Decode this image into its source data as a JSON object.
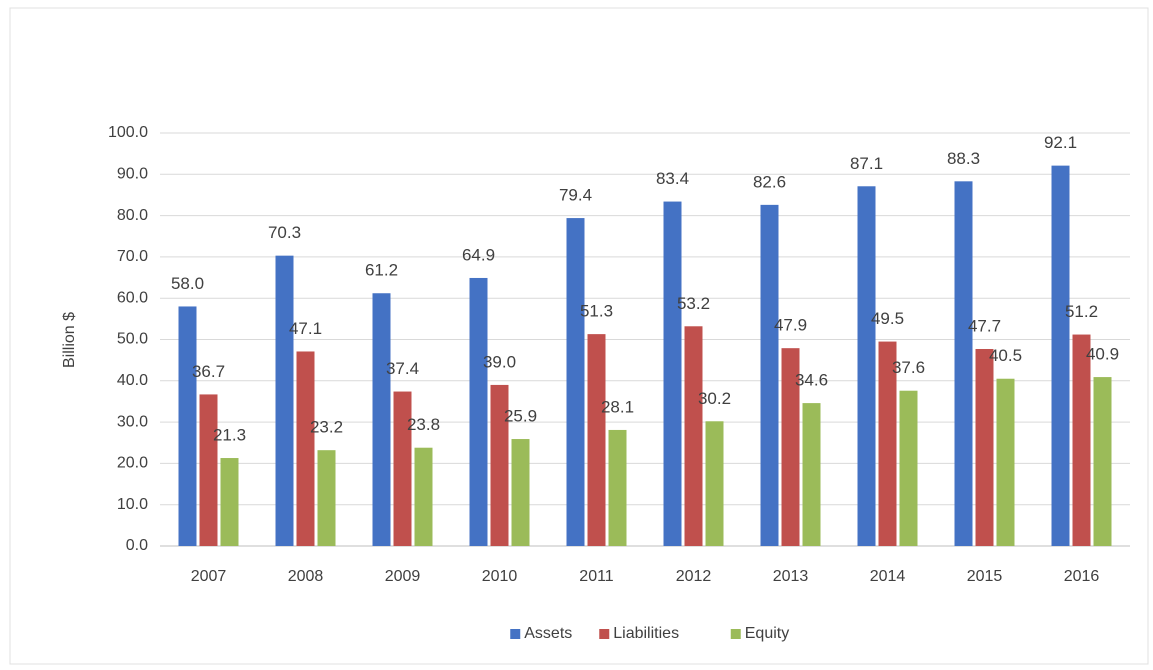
{
  "chart_data": {
    "type": "bar",
    "y_label": "Billion $",
    "categories": [
      "2007",
      "2008",
      "2009",
      "2010",
      "2011",
      "2012",
      "2013",
      "2014",
      "2015",
      "2016"
    ],
    "series": [
      {
        "name": "Assets",
        "color": "#4472c4",
        "values": [
          58.0,
          70.3,
          61.2,
          64.9,
          79.4,
          83.4,
          82.6,
          87.1,
          88.3,
          92.1
        ],
        "value_labels": [
          "58.0",
          "70.3",
          "61.2",
          "64.9",
          "79.4",
          "83.4",
          "82.6",
          "87.1",
          "88.3",
          "92.1"
        ]
      },
      {
        "name": "Liabilities",
        "color": "#c0504d",
        "values": [
          36.7,
          47.1,
          37.4,
          39.0,
          51.3,
          53.2,
          47.9,
          49.5,
          47.7,
          51.2
        ],
        "value_labels": [
          "36.7",
          "47.1",
          "37.4",
          "39.0",
          "51.3",
          "53.2",
          "47.9",
          "49.5",
          "47.7",
          "51.2"
        ]
      },
      {
        "name": "Equity",
        "color": "#9bbb59",
        "values": [
          21.3,
          23.2,
          23.8,
          25.9,
          28.1,
          30.2,
          34.6,
          37.6,
          40.5,
          40.9
        ],
        "value_labels": [
          "21.3",
          "23.2",
          "23.8",
          "25.9",
          "28.1",
          "30.2",
          "34.6",
          "37.6",
          "40.5",
          "40.9"
        ]
      }
    ],
    "ylim": [
      0,
      100
    ],
    "yticks": [
      {
        "value": 0,
        "label": "0.0"
      },
      {
        "value": 10,
        "label": "10.0"
      },
      {
        "value": 20,
        "label": "20.0"
      },
      {
        "value": 30,
        "label": "30.0"
      },
      {
        "value": 40,
        "label": "40.0"
      },
      {
        "value": 50,
        "label": "50.0"
      },
      {
        "value": 60,
        "label": "60.0"
      },
      {
        "value": 70,
        "label": "70.0"
      },
      {
        "value": 80,
        "label": "80.0"
      },
      {
        "value": 90,
        "label": "90.0"
      },
      {
        "value": 100,
        "label": "100.0"
      }
    ],
    "grid": true,
    "legend": "bottom"
  }
}
